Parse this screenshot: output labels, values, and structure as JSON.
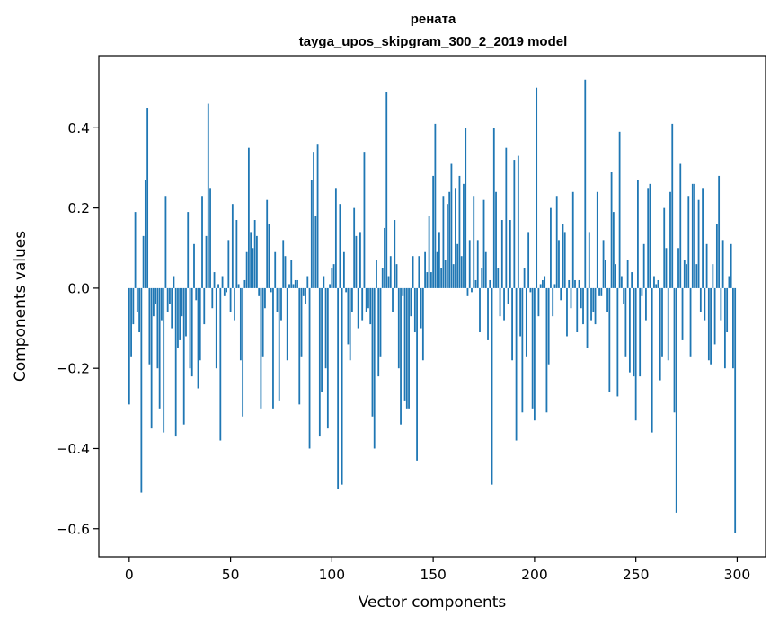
{
  "chart_data": {
    "type": "bar",
    "title": "рената",
    "subtitle": "tayga_upos_skipgram_300_2_2019 model",
    "xlabel": "Vector components",
    "ylabel": "Components values",
    "xlim": [
      -15,
      314
    ],
    "ylim": [
      -0.67,
      0.58
    ],
    "xticks": [
      0,
      50,
      100,
      150,
      200,
      250,
      300
    ],
    "yticks": [
      -0.6,
      -0.4,
      -0.2,
      0.0,
      0.2,
      0.4
    ],
    "ytick_labels": [
      "−0.6",
      "−0.4",
      "−0.2",
      "0.0",
      "0.2",
      "0.4"
    ],
    "bar_color": "#1f77b4",
    "values": [
      -0.29,
      -0.17,
      -0.09,
      0.19,
      -0.06,
      -0.11,
      -0.51,
      0.13,
      0.27,
      0.45,
      -0.19,
      -0.35,
      -0.07,
      -0.04,
      -0.2,
      -0.3,
      -0.08,
      -0.36,
      0.23,
      -0.06,
      -0.04,
      -0.1,
      0.03,
      -0.37,
      -0.15,
      -0.13,
      -0.07,
      -0.34,
      -0.12,
      0.19,
      -0.2,
      -0.22,
      0.11,
      -0.03,
      -0.25,
      -0.18,
      0.23,
      -0.09,
      0.13,
      0.46,
      0.25,
      -0.05,
      0.04,
      -0.2,
      0.01,
      -0.38,
      0.03,
      -0.02,
      -0.01,
      0.12,
      -0.06,
      0.21,
      -0.08,
      0.17,
      0.01,
      -0.18,
      -0.32,
      0.02,
      0.09,
      0.35,
      0.14,
      0.1,
      0.17,
      0.13,
      -0.02,
      -0.3,
      -0.17,
      -0.05,
      0.22,
      0.16,
      -0.01,
      -0.3,
      0.09,
      -0.06,
      -0.28,
      -0.08,
      0.12,
      0.08,
      -0.18,
      0.01,
      0.07,
      0.01,
      0.02,
      0.02,
      -0.29,
      -0.17,
      -0.02,
      -0.04,
      0.03,
      -0.4,
      0.27,
      0.34,
      0.18,
      0.36,
      -0.37,
      -0.26,
      0.03,
      -0.2,
      -0.35,
      0.01,
      0.05,
      0.06,
      0.25,
      -0.5,
      0.21,
      -0.49,
      0.09,
      -0.01,
      -0.14,
      -0.18,
      -0.06,
      0.2,
      0.13,
      -0.1,
      0.14,
      -0.08,
      0.34,
      -0.06,
      -0.05,
      -0.09,
      -0.32,
      -0.4,
      0.07,
      -0.22,
      -0.17,
      0.05,
      0.15,
      0.49,
      0.03,
      0.08,
      -0.06,
      0.17,
      0.06,
      -0.2,
      -0.34,
      -0.02,
      -0.28,
      -0.3,
      -0.3,
      -0.07,
      0.08,
      -0.11,
      -0.43,
      0.08,
      -0.1,
      -0.18,
      0.09,
      0.04,
      0.18,
      0.04,
      0.28,
      0.41,
      0.09,
      0.14,
      0.05,
      0.23,
      0.07,
      0.21,
      0.24,
      0.31,
      0.06,
      0.25,
      0.11,
      0.28,
      0.08,
      0.26,
      0.4,
      -0.02,
      0.12,
      -0.01,
      0.23,
      0.02,
      0.12,
      -0.11,
      0.05,
      0.22,
      0.09,
      -0.13,
      0.02,
      -0.49,
      0.4,
      0.24,
      0.05,
      -0.07,
      0.17,
      -0.08,
      0.35,
      -0.04,
      0.17,
      -0.18,
      0.32,
      -0.38,
      0.33,
      -0.12,
      -0.31,
      0.05,
      -0.17,
      0.14,
      -0.01,
      -0.3,
      -0.33,
      0.5,
      -0.07,
      0.01,
      0.02,
      0.03,
      -0.31,
      -0.19,
      0.2,
      -0.07,
      0.01,
      0.23,
      0.12,
      -0.03,
      0.16,
      0.14,
      -0.12,
      0.02,
      -0.05,
      0.24,
      0.02,
      -0.11,
      0.02,
      -0.05,
      -0.09,
      0.52,
      -0.15,
      0.14,
      -0.08,
      -0.06,
      -0.09,
      0.24,
      -0.02,
      -0.02,
      0.12,
      0.07,
      -0.06,
      -0.26,
      0.29,
      0.19,
      0.06,
      -0.27,
      0.39,
      0.03,
      -0.04,
      -0.17,
      0.07,
      -0.21,
      0.04,
      -0.22,
      -0.33,
      0.27,
      -0.22,
      -0.02,
      0.11,
      -0.08,
      0.25,
      0.26,
      -0.36,
      0.03,
      0.01,
      0.02,
      -0.23,
      -0.17,
      0.2,
      0.1,
      -0.18,
      0.24,
      0.41,
      -0.31,
      -0.56,
      0.1,
      0.31,
      -0.13,
      0.07,
      0.06,
      0.23,
      -0.17,
      0.26,
      0.26,
      0.06,
      0.22,
      -0.06,
      0.25,
      -0.08,
      0.11,
      -0.18,
      -0.19,
      0.06,
      -0.14,
      0.16,
      0.28,
      -0.08,
      0.12,
      -0.2,
      -0.11,
      0.03,
      0.11,
      -0.2,
      -0.61
    ]
  }
}
